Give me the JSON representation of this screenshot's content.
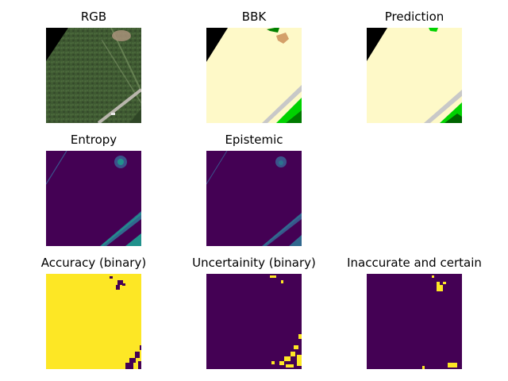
{
  "titles": {
    "rgb": "RGB",
    "bbk": "BBK",
    "prediction": "Prediction",
    "entropy": "Entropy",
    "epistemic": "Epistemic",
    "accuracy": "Accuracy (binary)",
    "uncertainty": "Uncertainity (binary)",
    "inaccurate": "Inaccurate and certain"
  },
  "colors": {
    "viridis_dark": "#440154",
    "viridis_yellow": "#fde725",
    "viridis_teal": "#21918c",
    "viridis_blue": "#3b528b",
    "forest_green": "#3f5a32",
    "land_cream": "#fef9c8",
    "tan_patch": "#d4a06a",
    "road_gray": "#c8c8c8",
    "vegetation_green": "#00d200",
    "dark_green": "#006400",
    "black": "#000000"
  }
}
